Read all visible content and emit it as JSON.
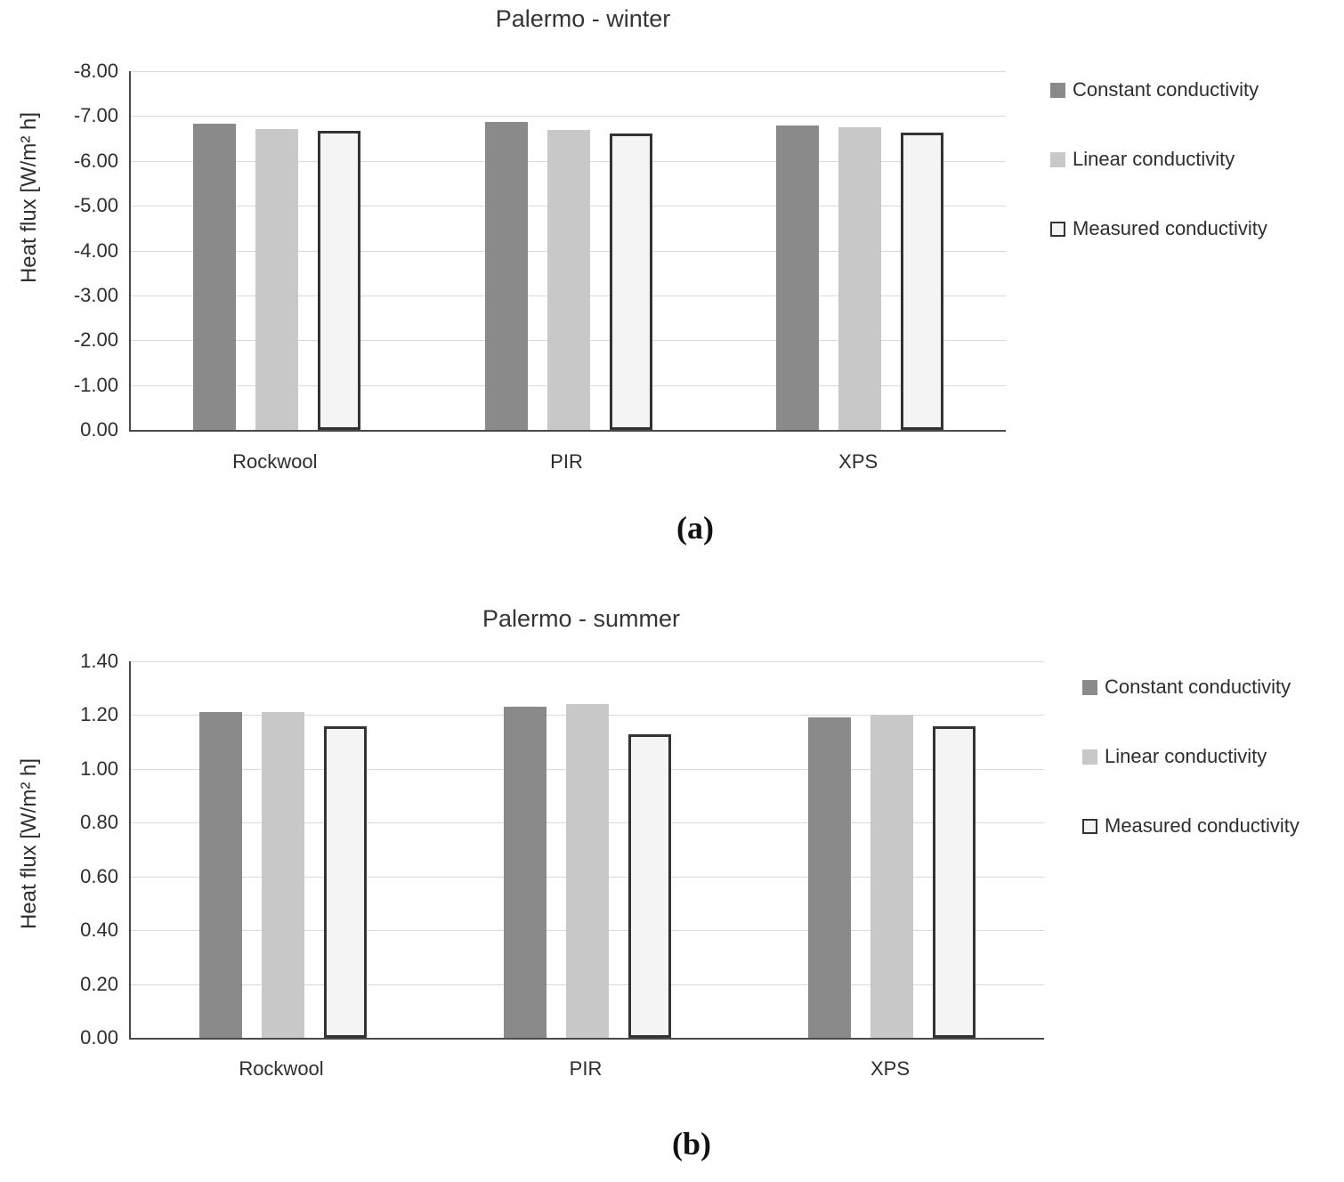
{
  "figure": {
    "background": "#ffffff"
  },
  "colors": {
    "gridline": "#dadada",
    "axis": "#4a4a4a",
    "text": "#2e2e2e",
    "series_constant": "#8a8a8a",
    "series_linear": "#c8c8c8",
    "series_measured_fill": "#f4f4f4",
    "series_measured_border": "#333333"
  },
  "chart_data": [
    {
      "id": "winter",
      "type": "bar",
      "title": "Palermo - winter",
      "ylabel": "Heat flux [W/m² h]",
      "xlabel": "",
      "categories": [
        "Rockwool",
        "PIR",
        "XPS"
      ],
      "series": [
        {
          "name": "Constant conductivity",
          "color": "#8a8a8a",
          "values": [
            -6.83,
            -6.87,
            -6.79
          ]
        },
        {
          "name": "Linear conductivity",
          "color": "#c8c8c8",
          "values": [
            -6.71,
            -6.69,
            -6.75
          ]
        },
        {
          "name": "Measured conductivity",
          "color": "#f4f4f4",
          "border": "#333333",
          "values": [
            -6.67,
            -6.61,
            -6.64
          ]
        }
      ],
      "ylim": [
        0,
        -8
      ],
      "yticks": [
        "-8.00",
        "-7.00",
        "-6.00",
        "-5.00",
        "-4.00",
        "-3.00",
        "-2.00",
        "-1.00",
        "0.00"
      ],
      "grid": true,
      "legend_position": "right",
      "panel_label": "(a)"
    },
    {
      "id": "summer",
      "type": "bar",
      "title": "Palermo - summer",
      "ylabel": "Heat flux [W/m² h]",
      "xlabel": "",
      "categories": [
        "Rockwool",
        "PIR",
        "XPS"
      ],
      "series": [
        {
          "name": "Constant conductivity",
          "color": "#8a8a8a",
          "values": [
            1.21,
            1.23,
            1.19
          ]
        },
        {
          "name": "Linear conductivity",
          "color": "#c8c8c8",
          "values": [
            1.21,
            1.24,
            1.2
          ]
        },
        {
          "name": "Measured conductivity",
          "color": "#f4f4f4",
          "border": "#333333",
          "values": [
            1.16,
            1.13,
            1.16
          ]
        }
      ],
      "ylim": [
        0,
        1.4
      ],
      "yticks": [
        "1.40",
        "1.20",
        "1.00",
        "0.80",
        "0.60",
        "0.40",
        "0.20",
        "0.00"
      ],
      "grid": true,
      "legend_position": "right",
      "panel_label": "(b)"
    }
  ]
}
